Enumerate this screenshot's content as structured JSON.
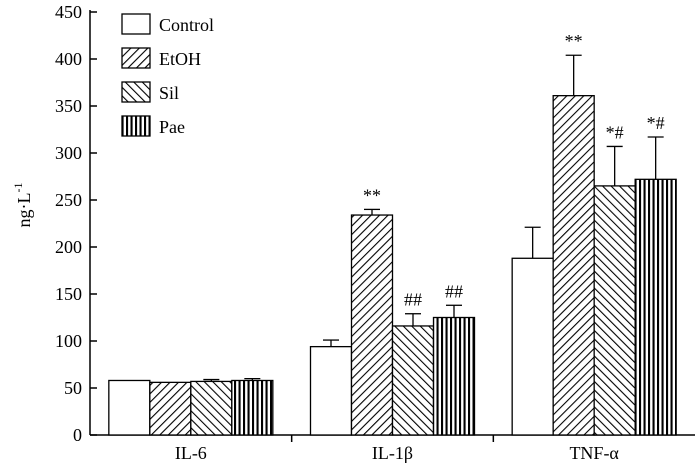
{
  "chart_data": {
    "type": "bar",
    "title": "",
    "xlabel": "",
    "ylabel": "ng·L",
    "ylabel_superscript": "-1",
    "ylim": [
      0,
      450
    ],
    "yticks": [
      0,
      50,
      100,
      150,
      200,
      250,
      300,
      350,
      400,
      450
    ],
    "categories": [
      "IL-6",
      "IL-1β",
      "TNF-α"
    ],
    "series": [
      {
        "name": "Control",
        "pattern": "none",
        "values": [
          58,
          94,
          188
        ],
        "errors": [
          1,
          7,
          33
        ],
        "annotations": [
          "",
          "",
          ""
        ]
      },
      {
        "name": "EtOH",
        "pattern": "hatch-forward",
        "values": [
          56,
          234,
          361
        ],
        "errors": [
          1,
          6,
          43
        ],
        "annotations": [
          "",
          "**",
          "**"
        ]
      },
      {
        "name": "Sil",
        "pattern": "hatch-back",
        "values": [
          57,
          116,
          265
        ],
        "errors": [
          2,
          13,
          42
        ],
        "annotations": [
          "",
          "##",
          "*#"
        ]
      },
      {
        "name": "Pae",
        "pattern": "vertical",
        "values": [
          58,
          125,
          272
        ],
        "errors": [
          2,
          13,
          45
        ],
        "annotations": [
          "",
          "##",
          "*#"
        ]
      }
    ],
    "legend_position": "top-left"
  }
}
